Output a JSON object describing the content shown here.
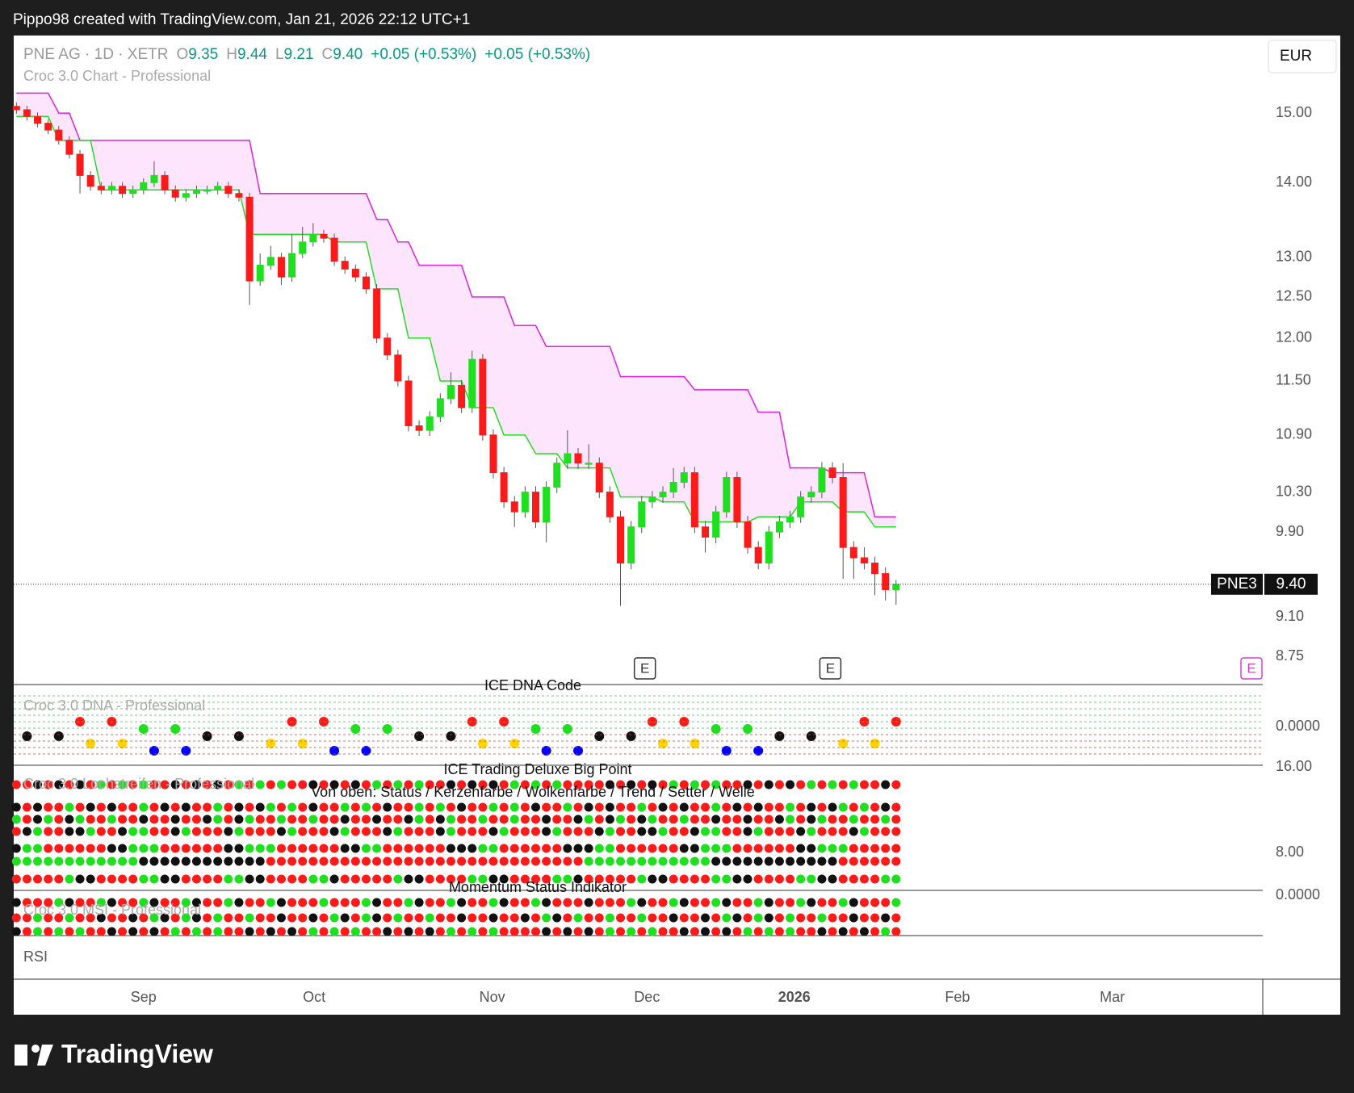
{
  "header": "Pippo98 created with TradingView.com, Jan 21, 2026 22:12 UTC+1",
  "logo": "TradingView",
  "chart_data": {
    "type": "candlestick",
    "symbol": "PNE AG · 1D · XETR",
    "legend": {
      "o_key": "O",
      "open": "9.35",
      "h_key": "H",
      "high": "9.44",
      "l_key": "L",
      "low": "9.21",
      "c_key": "C",
      "close": "9.40",
      "change": "+0.05 (+0.53%)",
      "change2": "+0.05 (+0.53%)"
    },
    "indicator": "Croc 3.0 Chart - Professional",
    "currency": "EUR",
    "ticker_tag": "PNE3",
    "last_label": "9.40",
    "last": 9.4,
    "log_scale": true,
    "up_color": "#1fe01f",
    "down_color": "#ff1a1a",
    "ylim": [
      8.51,
      16.2
    ],
    "yticks": [
      {
        "value": 15,
        "label": "15.00"
      },
      {
        "value": 14,
        "label": "14.00"
      },
      {
        "value": 13,
        "label": "13.00"
      },
      {
        "value": 12.5,
        "label": "12.50"
      },
      {
        "value": 12,
        "label": "12.00"
      },
      {
        "value": 11.5,
        "label": "11.50"
      },
      {
        "value": 10.9,
        "label": "10.90"
      },
      {
        "value": 10.3,
        "label": "10.30"
      },
      {
        "value": 9.9,
        "label": "9.90"
      },
      {
        "value": 9.1,
        "label": "9.10"
      },
      {
        "value": 8.75,
        "label": "8.75"
      }
    ],
    "xlim": [
      -0.25,
      117.6
    ],
    "xticks": [
      {
        "value": 12,
        "label": "Sep"
      },
      {
        "value": 28.1,
        "label": "Oct"
      },
      {
        "value": 44.9,
        "label": "Nov"
      },
      {
        "value": 59.5,
        "label": "Dec"
      },
      {
        "value": 73.4,
        "label": "2026"
      },
      {
        "value": 88.8,
        "label": "Feb"
      },
      {
        "value": 103.4,
        "label": "Mar"
      }
    ],
    "events": [
      "E",
      "E",
      "E"
    ],
    "ohlc": [
      [
        15.1,
        15.16,
        14.99,
        15.05
      ],
      [
        15.05,
        15.11,
        14.89,
        14.95
      ],
      [
        14.95,
        15.01,
        14.79,
        14.85
      ],
      [
        14.85,
        14.91,
        14.69,
        14.75
      ],
      [
        14.75,
        14.81,
        14.54,
        14.6
      ],
      [
        14.6,
        14.66,
        14.34,
        14.4
      ],
      [
        14.4,
        14.46,
        13.85,
        14.1
      ],
      [
        14.1,
        14.16,
        13.89,
        13.95
      ],
      [
        13.95,
        14.01,
        13.84,
        13.9
      ],
      [
        13.9,
        14.01,
        13.84,
        13.95
      ],
      [
        13.95,
        14.01,
        13.79,
        13.85
      ],
      [
        13.85,
        13.96,
        13.79,
        13.9
      ],
      [
        13.9,
        14.06,
        13.84,
        14.0
      ],
      [
        14.0,
        14.3,
        13.94,
        14.1
      ],
      [
        14.1,
        14.16,
        13.84,
        13.9
      ],
      [
        13.9,
        13.96,
        13.74,
        13.8
      ],
      [
        13.8,
        13.91,
        13.74,
        13.85
      ],
      [
        13.85,
        13.96,
        13.79,
        13.9
      ],
      [
        13.9,
        13.96,
        13.84,
        13.9
      ],
      [
        13.9,
        14.01,
        13.84,
        13.95
      ],
      [
        13.95,
        14.01,
        13.79,
        13.85
      ],
      [
        13.85,
        13.91,
        13.74,
        13.8
      ],
      [
        13.8,
        13.86,
        12.4,
        12.7
      ],
      [
        12.7,
        13.05,
        12.64,
        12.9
      ],
      [
        12.9,
        13.15,
        12.84,
        13.0
      ],
      [
        13.0,
        13.06,
        12.65,
        12.75
      ],
      [
        12.75,
        13.3,
        12.69,
        13.05
      ],
      [
        13.05,
        13.4,
        12.99,
        13.2
      ],
      [
        13.2,
        13.45,
        13.14,
        13.3
      ],
      [
        13.3,
        13.36,
        13.19,
        13.25
      ],
      [
        13.25,
        13.31,
        12.89,
        12.95
      ],
      [
        12.95,
        13.01,
        12.79,
        12.85
      ],
      [
        12.85,
        12.91,
        12.69,
        12.75
      ],
      [
        12.75,
        12.81,
        12.54,
        12.6
      ],
      [
        12.6,
        12.66,
        11.94,
        12.0
      ],
      [
        12.0,
        12.06,
        11.74,
        11.8
      ],
      [
        11.8,
        11.86,
        11.44,
        11.5
      ],
      [
        11.5,
        11.56,
        10.94,
        11.0
      ],
      [
        11.0,
        11.06,
        10.89,
        10.95
      ],
      [
        10.95,
        11.16,
        10.89,
        11.1
      ],
      [
        11.1,
        11.36,
        11.04,
        11.3
      ],
      [
        11.3,
        11.6,
        11.24,
        11.45
      ],
      [
        11.45,
        11.51,
        11.14,
        11.2
      ],
      [
        11.2,
        11.85,
        11.14,
        11.75
      ],
      [
        11.75,
        11.81,
        10.84,
        10.9
      ],
      [
        10.9,
        10.96,
        10.44,
        10.5
      ],
      [
        10.5,
        10.56,
        10.14,
        10.2
      ],
      [
        10.2,
        10.26,
        9.95,
        10.1
      ],
      [
        10.1,
        10.36,
        10.04,
        10.3
      ],
      [
        10.3,
        10.36,
        9.94,
        10.0
      ],
      [
        10.0,
        10.41,
        9.8,
        10.35
      ],
      [
        10.35,
        10.66,
        10.29,
        10.6
      ],
      [
        10.6,
        10.95,
        10.54,
        10.7
      ],
      [
        10.7,
        10.76,
        10.54,
        10.6
      ],
      [
        10.6,
        10.8,
        10.54,
        10.6
      ],
      [
        10.6,
        10.66,
        10.24,
        10.3
      ],
      [
        10.3,
        10.36,
        9.99,
        10.05
      ],
      [
        10.05,
        10.11,
        9.2,
        9.6
      ],
      [
        9.6,
        10.01,
        9.54,
        9.95
      ],
      [
        9.95,
        10.26,
        9.89,
        10.2
      ],
      [
        10.2,
        10.31,
        10.14,
        10.25
      ],
      [
        10.25,
        10.36,
        10.19,
        10.3
      ],
      [
        10.3,
        10.55,
        10.24,
        10.4
      ],
      [
        10.4,
        10.56,
        10.34,
        10.5
      ],
      [
        10.5,
        10.56,
        9.89,
        9.95
      ],
      [
        9.95,
        10.01,
        9.7,
        9.85
      ],
      [
        9.85,
        10.16,
        9.79,
        10.1
      ],
      [
        10.1,
        10.51,
        10.04,
        10.45
      ],
      [
        10.45,
        10.51,
        9.94,
        10.0
      ],
      [
        10.0,
        10.06,
        9.69,
        9.75
      ],
      [
        9.75,
        9.81,
        9.54,
        9.6
      ],
      [
        9.6,
        9.96,
        9.54,
        9.9
      ],
      [
        9.9,
        10.06,
        9.84,
        10.0
      ],
      [
        10.0,
        10.11,
        9.94,
        10.05
      ],
      [
        10.05,
        10.31,
        9.99,
        10.25
      ],
      [
        10.25,
        10.36,
        10.19,
        10.3
      ],
      [
        10.3,
        10.61,
        10.24,
        10.55
      ],
      [
        10.55,
        10.61,
        10.39,
        10.45
      ],
      [
        10.45,
        10.6,
        9.45,
        9.75
      ],
      [
        9.75,
        9.81,
        9.45,
        9.65
      ],
      [
        9.65,
        9.75,
        9.54,
        9.6
      ],
      [
        9.6,
        9.66,
        9.3,
        9.5
      ],
      [
        9.5,
        9.56,
        9.25,
        9.35
      ],
      [
        9.35,
        9.44,
        9.21,
        9.4
      ]
    ],
    "lines": [
      {
        "color": "#e020e0",
        "values": [
          15.3,
          15.3,
          15.3,
          15.3,
          15.0,
          15.0,
          14.6,
          14.6,
          14.6,
          14.6,
          14.6,
          14.6,
          14.6,
          14.6,
          14.6,
          14.6,
          14.6,
          14.6,
          14.6,
          14.6,
          14.6,
          14.6,
          14.6,
          13.85,
          13.85,
          13.85,
          13.85,
          13.85,
          13.85,
          13.85,
          13.85,
          13.85,
          13.85,
          13.85,
          13.5,
          13.5,
          13.2,
          13.2,
          12.9,
          12.9,
          12.9,
          12.9,
          12.9,
          12.5,
          12.5,
          12.5,
          12.5,
          12.15,
          12.15,
          12.15,
          11.9,
          11.9,
          11.9,
          11.9,
          11.9,
          11.9,
          11.9,
          11.55,
          11.55,
          11.55,
          11.55,
          11.55,
          11.55,
          11.55,
          11.4,
          11.4,
          11.4,
          11.4,
          11.4,
          11.4,
          11.15,
          11.15,
          11.15,
          10.55,
          10.55,
          10.55,
          10.55,
          10.5,
          10.5,
          10.5,
          10.5,
          10.05,
          10.05,
          10.05
        ]
      },
      {
        "color": "#22dd22",
        "values": [
          14.95,
          14.95,
          14.95,
          14.95,
          14.6,
          14.6,
          14.6,
          14.6,
          13.9,
          13.9,
          13.9,
          13.9,
          13.9,
          13.9,
          13.9,
          13.9,
          13.9,
          13.9,
          13.9,
          13.9,
          13.9,
          13.9,
          13.3,
          13.3,
          13.3,
          13.3,
          13.3,
          13.3,
          13.3,
          13.3,
          13.2,
          13.2,
          13.2,
          13.2,
          12.6,
          12.6,
          12.6,
          12.0,
          12.0,
          12.0,
          11.5,
          11.5,
          11.5,
          11.2,
          11.2,
          11.2,
          10.9,
          10.9,
          10.9,
          10.7,
          10.7,
          10.7,
          10.55,
          10.55,
          10.55,
          10.55,
          10.55,
          10.25,
          10.25,
          10.25,
          10.25,
          10.2,
          10.2,
          10.2,
          10.0,
          10.0,
          10.0,
          10.0,
          10.0,
          10.0,
          10.05,
          10.05,
          10.05,
          10.05,
          10.2,
          10.2,
          10.2,
          10.2,
          10.1,
          10.1,
          10.1,
          9.95,
          9.95,
          9.95
        ]
      }
    ]
  },
  "panes": [
    {
      "title": "ICE DNA Code",
      "name": "Croc 3.0 DNA - Professional",
      "scale": "0.0000"
    },
    {
      "title": "ICE Trading Deluxe Big Point",
      "name": "Croc 3.0 Lochstreifen - Professional",
      "subtitle": "Von oben: Status / Kerzenfarbe / Wolkenfarbe / Trend / Setter / Welle",
      "scale_top": "16.00",
      "scale_mid": "8.00"
    },
    {
      "title": "Momentum Status Indikator",
      "name": "Croc 3.0 MSI - Professional",
      "scale": "0.0000"
    },
    {
      "name": "RSI"
    }
  ]
}
